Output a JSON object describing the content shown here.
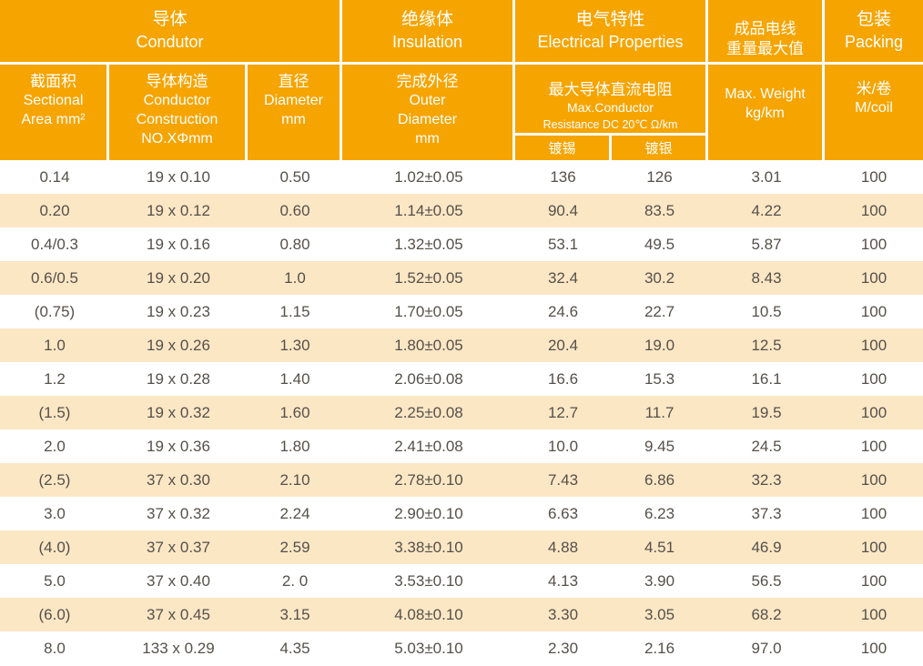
{
  "colors": {
    "header_bg": "#F6A400",
    "row_alt_bg": "#FCE7C5",
    "row_bg": "#FFFFFF",
    "header_text": "#FFFFFF",
    "body_text": "#55504A",
    "separator": "#FFFFFF"
  },
  "header": {
    "conductor": {
      "zh": "导体",
      "en": "Condutor"
    },
    "insulation": {
      "zh": "绝缘体",
      "en": "Insulation"
    },
    "electrical": {
      "zh": "电气特性",
      "en": "Electrical Properties"
    },
    "weight": {
      "zh_line1": "成品电线",
      "zh_line2": "重量最大值",
      "en_line1": "Max. Weight",
      "en_line2": "kg/km"
    },
    "packing": {
      "zh": "包装",
      "en": "Packing",
      "unit_zh": "米/卷",
      "unit_en": "M/coil"
    },
    "sectional": {
      "zh": "截面积",
      "en_line1": "Sectional",
      "en_line2": "Area mm²"
    },
    "construction": {
      "zh": "导体构造",
      "en_line1": "Conductor",
      "en_line2": "Construction",
      "en_line3": "NO.XΦmm"
    },
    "diameter": {
      "zh": "直径",
      "en_line1": "Diameter",
      "en_line2": "mm"
    },
    "outer": {
      "zh": "完成外径",
      "en_line1": "Outer",
      "en_line2": "Diameter",
      "en_line3": "mm"
    },
    "resistance": {
      "zh": "最大导体直流电阻",
      "en_line1": "Max.Conductor",
      "en_line2": "Resistance DC 20℃  Ω/km",
      "tinned": "镀锡",
      "silver": "镀银"
    }
  },
  "table": {
    "column_keys": [
      "sectional-area",
      "construction",
      "diameter",
      "outer-diameter",
      "resistance-tinned",
      "resistance-silver",
      "max-weight",
      "meters-per-coil"
    ],
    "rows": [
      [
        "0.14",
        "19 x 0.10",
        "0.50",
        "1.02±0.05",
        "136",
        "126",
        "3.01",
        "100"
      ],
      [
        "0.20",
        "19 x 0.12",
        "0.60",
        "1.14±0.05",
        "90.4",
        "83.5",
        "4.22",
        "100"
      ],
      [
        "0.4/0.3",
        "19 x 0.16",
        "0.80",
        "1.32±0.05",
        "53.1",
        "49.5",
        "5.87",
        "100"
      ],
      [
        "0.6/0.5",
        "19 x 0.20",
        "1.0",
        "1.52±0.05",
        "32.4",
        "30.2",
        "8.43",
        "100"
      ],
      [
        "(0.75)",
        "19 x 0.23",
        "1.15",
        "1.70±0.05",
        "24.6",
        "22.7",
        "10.5",
        "100"
      ],
      [
        "1.0",
        "19 x 0.26",
        "1.30",
        "1.80±0.05",
        "20.4",
        "19.0",
        "12.5",
        "100"
      ],
      [
        "1.2",
        "19 x 0.28",
        "1.40",
        "2.06±0.08",
        "16.6",
        "15.3",
        "16.1",
        "100"
      ],
      [
        "(1.5)",
        "19 x 0.32",
        "1.60",
        "2.25±0.08",
        "12.7",
        "11.7",
        "19.5",
        "100"
      ],
      [
        "2.0",
        "19 x 0.36",
        "1.80",
        "2.41±0.08",
        "10.0",
        "9.45",
        "24.5",
        "100"
      ],
      [
        "(2.5)",
        "37 x 0.30",
        "2.10",
        "2.78±0.10",
        "7.43",
        "6.86",
        "32.3",
        "100"
      ],
      [
        "3.0",
        "37 x 0.32",
        "2.24",
        "2.90±0.10",
        "6.63",
        "6.23",
        "37.3",
        "100"
      ],
      [
        "(4.0)",
        "37 x 0.37",
        "2.59",
        "3.38±0.10",
        "4.88",
        "4.51",
        "46.9",
        "100"
      ],
      [
        "5.0",
        "37 x 0.40",
        "2. 0",
        "3.53±0.10",
        "4.13",
        "3.90",
        "56.5",
        "100"
      ],
      [
        "(6.0)",
        "37 x 0.45",
        "3.15",
        "4.08±0.10",
        "3.30",
        "3.05",
        "68.2",
        "100"
      ],
      [
        "8.0",
        "133 x 0.29",
        "4.35",
        "5.03±0.10",
        "2.30",
        "2.16",
        "97.0",
        "100"
      ]
    ]
  }
}
